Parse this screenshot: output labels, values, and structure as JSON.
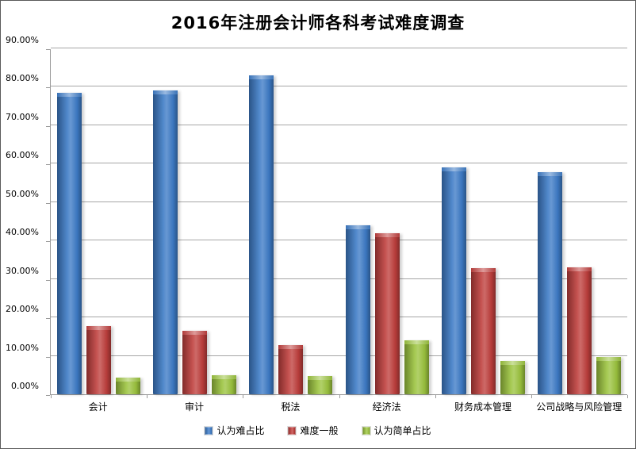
{
  "window": {
    "background": "#ffffff",
    "border_color": "#5a5a5a"
  },
  "colors": {
    "gridline": "#a6a6a6",
    "axis": "#9a9a9a",
    "text": "#000000"
  },
  "chart_data": {
    "type": "bar",
    "title": "2016年注册会计师各科考试难度调查",
    "categories": [
      "会计",
      "审计",
      "税法",
      "经济法",
      "财务成本管理",
      "公司战略与风险管理"
    ],
    "series": [
      {
        "name": "认为难占比",
        "color": "#3e7cc7",
        "values": [
          78.5,
          79.0,
          83.0,
          44.0,
          59.0,
          57.7
        ]
      },
      {
        "name": "难度一般",
        "color": "#c0403e",
        "values": [
          17.7,
          16.6,
          12.8,
          42.0,
          32.8,
          33.0
        ]
      },
      {
        "name": "认为简单占比",
        "color": "#9cc43f",
        "values": [
          4.4,
          5.0,
          4.8,
          14.0,
          8.6,
          9.7
        ]
      }
    ],
    "xlabel": "",
    "ylabel": "",
    "ylim": [
      0,
      90
    ],
    "y_tick_step": 10,
    "y_tick_labels": [
      "0.00%",
      "10.00%",
      "20.00%",
      "30.00%",
      "40.00%",
      "50.00%",
      "60.00%",
      "70.00%",
      "80.00%",
      "90.00%"
    ],
    "grid": "horizontal",
    "legend_position": "bottom"
  }
}
